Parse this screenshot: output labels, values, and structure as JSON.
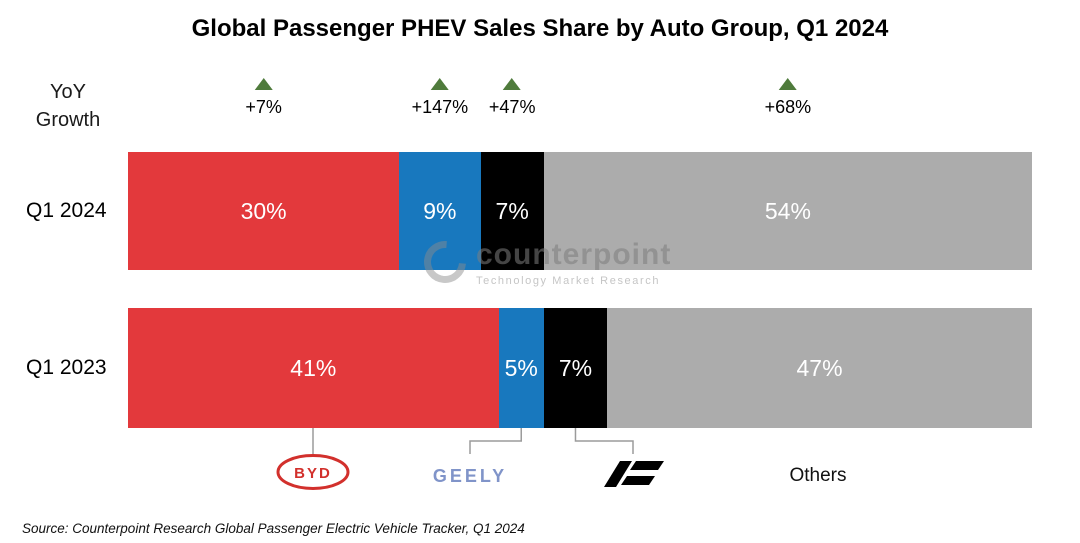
{
  "title": "Global Passenger PHEV Sales Share by Auto Group, Q1 2024",
  "yoy_header": {
    "line1": "YoY",
    "line2": "Growth"
  },
  "chart_data": {
    "type": "bar",
    "subtype": "horizontal-stacked-100",
    "title": "Global Passenger PHEV Sales Share by Auto Group, Q1 2024",
    "categories": [
      "Q1 2024",
      "Q1 2023"
    ],
    "value_suffix": "%",
    "series": [
      {
        "name": "BYD",
        "color": "#E3393C",
        "values": [
          30,
          41
        ]
      },
      {
        "name": "Geely",
        "color": "#1878BE",
        "values": [
          9,
          5
        ]
      },
      {
        "name": "Li Auto",
        "color": "#000000",
        "values": [
          7,
          7
        ]
      },
      {
        "name": "Others",
        "color": "#ACACAC",
        "values": [
          54,
          47
        ]
      }
    ],
    "yoy_growth": [
      {
        "brand": "BYD",
        "label": "+7%"
      },
      {
        "brand": "Geely",
        "label": "+147%"
      },
      {
        "brand": "Li Auto",
        "label": "+47%"
      },
      {
        "brand": "Others",
        "label": "+68%"
      }
    ],
    "yoy_marker_color": "#4F7B3C",
    "legend_position": "bottom",
    "grid": false
  },
  "brands": {
    "byd": {
      "label": "BYD",
      "color": "#D2302C"
    },
    "geely": {
      "label": "GEELY",
      "color": "#8094C9"
    },
    "li_auto": {
      "label": "Li Auto",
      "color": "#000000"
    },
    "others": {
      "label": "Others",
      "color": "#111111"
    }
  },
  "watermark": {
    "brand": "counterpoint",
    "tagline": "Technology Market Research"
  },
  "source": "Source: Counterpoint Research Global Passenger Electric Vehicle Tracker, Q1 2024"
}
